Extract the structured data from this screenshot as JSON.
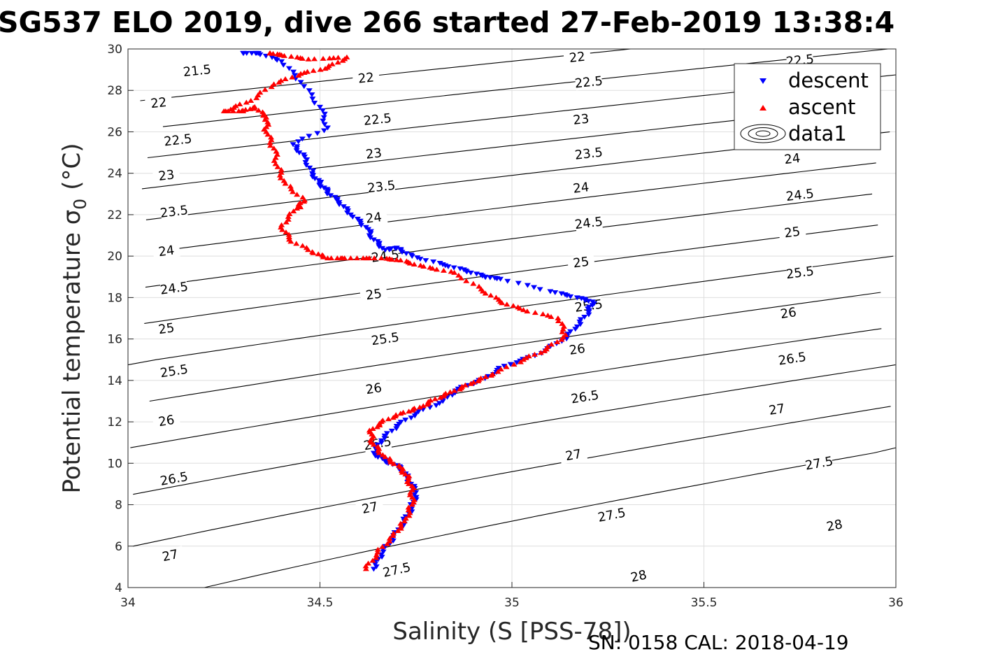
{
  "chart_data": {
    "type": "scatter",
    "title": "SG537 ELO 2019, dive 266 started 27-Feb-2019 13:38:4",
    "xlabel": "Salinity (S [PSS-78])",
    "ylabel_text": "Potential temperature σ",
    "ylabel_sub": "0",
    "ylabel_unit": "(°C)",
    "xlim": [
      34,
      36
    ],
    "ylim": [
      4,
      30
    ],
    "xticks": [
      34,
      34.5,
      35,
      35.5,
      36
    ],
    "xtick_labels": [
      "34",
      "34.5",
      "35",
      "35.5",
      "36"
    ],
    "yticks": [
      4,
      6,
      8,
      10,
      12,
      14,
      16,
      18,
      20,
      22,
      24,
      26,
      28,
      30
    ],
    "ytick_labels": [
      "4",
      "6",
      "8",
      "10",
      "12",
      "14",
      "16",
      "18",
      "20",
      "22",
      "24",
      "26",
      "28",
      "30"
    ],
    "grid": true,
    "legend_position": "top-right",
    "legend": [
      "descent",
      "ascent",
      "data1"
    ],
    "footer": "SN: 0158  CAL: 2018-04-19",
    "colors": {
      "descent": "#0000ff",
      "ascent": "#ff0000",
      "contour": "#000000",
      "grid": "#dedede"
    },
    "contours": {
      "levels": [
        21.5,
        22,
        22.5,
        23,
        23.5,
        24,
        24.5,
        25,
        25.5,
        26,
        26.5,
        27,
        27.5,
        28
      ],
      "level_labels": [
        "21.5",
        "22",
        "22.5",
        "23",
        "23.5",
        "24",
        "24.5",
        "25",
        "25.5",
        "26",
        "26.5",
        "27",
        "27.5",
        "28"
      ],
      "labels": [
        {
          "level": "21.5",
          "s": 34.18,
          "t": 28.95
        },
        {
          "level": "22",
          "s": 34.08,
          "t": 27.4
        },
        {
          "level": "22",
          "s": 34.62,
          "t": 28.6
        },
        {
          "level": "22",
          "s": 35.17,
          "t": 29.6
        },
        {
          "level": "22.5",
          "s": 34.13,
          "t": 25.6
        },
        {
          "level": "22.5",
          "s": 34.65,
          "t": 26.6
        },
        {
          "level": "22.5",
          "s": 35.2,
          "t": 28.4
        },
        {
          "level": "22.5",
          "s": 35.75,
          "t": 29.45
        },
        {
          "level": "23",
          "s": 34.1,
          "t": 23.9
        },
        {
          "level": "23",
          "s": 34.64,
          "t": 24.95
        },
        {
          "level": "23",
          "s": 35.18,
          "t": 26.6
        },
        {
          "level": "23.5",
          "s": 34.12,
          "t": 22.15
        },
        {
          "level": "23.5",
          "s": 34.66,
          "t": 23.35
        },
        {
          "level": "23.5",
          "s": 35.2,
          "t": 24.95
        },
        {
          "level": "24",
          "s": 34.1,
          "t": 20.25
        },
        {
          "level": "24",
          "s": 34.64,
          "t": 21.85
        },
        {
          "level": "24",
          "s": 35.18,
          "t": 23.3
        },
        {
          "level": "24",
          "s": 35.73,
          "t": 24.7
        },
        {
          "level": "24.5",
          "s": 34.12,
          "t": 18.45
        },
        {
          "level": "24.5",
          "s": 34.67,
          "t": 20.0
        },
        {
          "level": "24.5",
          "s": 35.2,
          "t": 21.6
        },
        {
          "level": "24.5",
          "s": 35.75,
          "t": 22.95
        },
        {
          "level": "25",
          "s": 34.1,
          "t": 16.5
        },
        {
          "level": "25",
          "s": 34.64,
          "t": 18.15
        },
        {
          "level": "25",
          "s": 35.18,
          "t": 19.7
        },
        {
          "level": "25",
          "s": 35.73,
          "t": 21.15
        },
        {
          "level": "25.5",
          "s": 34.12,
          "t": 14.45
        },
        {
          "level": "25.5",
          "s": 34.67,
          "t": 16.0
        },
        {
          "level": "25.5",
          "s": 35.2,
          "t": 17.6
        },
        {
          "level": "25.5",
          "s": 35.75,
          "t": 19.2
        },
        {
          "level": "26",
          "s": 34.1,
          "t": 12.05
        },
        {
          "level": "26",
          "s": 34.64,
          "t": 13.6
        },
        {
          "level": "26",
          "s": 35.17,
          "t": 15.5
        },
        {
          "level": "26",
          "s": 35.72,
          "t": 17.25
        },
        {
          "level": "26.5",
          "s": 34.12,
          "t": 9.25
        },
        {
          "level": "26.5",
          "s": 34.65,
          "t": 10.95
        },
        {
          "level": "26.5",
          "s": 35.19,
          "t": 13.2
        },
        {
          "level": "26.5",
          "s": 35.73,
          "t": 15.05
        },
        {
          "level": "27",
          "s": 34.11,
          "t": 5.55
        },
        {
          "level": "27",
          "s": 34.63,
          "t": 7.85
        },
        {
          "level": "27",
          "s": 35.16,
          "t": 10.4
        },
        {
          "level": "27",
          "s": 35.69,
          "t": 12.6
        },
        {
          "level": "27.5",
          "s": 34.7,
          "t": 4.85
        },
        {
          "level": "27.5",
          "s": 35.26,
          "t": 7.5
        },
        {
          "level": "27.5",
          "s": 35.8,
          "t": 10.0
        },
        {
          "level": "28",
          "s": 35.33,
          "t": 4.55
        },
        {
          "level": "28",
          "s": 35.84,
          "t": 7.0
        }
      ]
    },
    "descent": {
      "s": [
        34.3,
        34.34,
        34.4,
        34.45,
        34.5,
        34.52,
        34.43,
        34.46,
        34.48,
        34.5,
        34.52,
        34.55,
        34.58,
        34.62,
        34.64,
        34.67,
        34.7,
        34.74,
        34.82,
        34.88,
        34.93,
        34.97,
        35.1,
        35.17,
        35.21,
        35.2,
        35.17,
        35.13,
        35.06,
        34.98,
        34.93,
        34.86,
        34.82,
        34.75,
        34.7,
        34.66,
        34.64,
        34.67,
        34.71,
        34.73,
        34.75,
        34.74,
        34.72,
        34.69,
        34.66,
        34.64
      ],
      "t": [
        29.8,
        29.8,
        29.4,
        28.4,
        27.2,
        26.2,
        25.4,
        24.8,
        24.0,
        23.5,
        23.1,
        22.6,
        22.0,
        21.4,
        20.8,
        20.3,
        20.4,
        20.0,
        19.6,
        19.3,
        19.0,
        18.9,
        18.3,
        18.0,
        17.8,
        17.3,
        16.6,
        15.9,
        15.2,
        14.7,
        14.1,
        13.6,
        13.0,
        12.4,
        11.8,
        11.1,
        10.5,
        10.1,
        9.8,
        9.2,
        8.6,
        7.9,
        7.2,
        6.4,
        5.6,
        4.9
      ]
    },
    "ascent": {
      "s": [
        34.62,
        34.65,
        34.69,
        34.72,
        34.74,
        34.74,
        34.73,
        34.71,
        34.67,
        34.64,
        34.63,
        34.66,
        34.71,
        34.76,
        34.8,
        34.85,
        34.9,
        34.95,
        35.03,
        35.09,
        35.14,
        35.12,
        35.03,
        34.97,
        34.92,
        34.85,
        34.77,
        34.71,
        34.66,
        34.58,
        34.52,
        34.48,
        34.42,
        34.4,
        34.44,
        34.46,
        34.41,
        34.39,
        34.38,
        34.36,
        34.36,
        34.33,
        34.3,
        34.25,
        34.32,
        34.38,
        34.45,
        34.52,
        34.57,
        34.47,
        34.4,
        34.37
      ],
      "t": [
        4.9,
        5.7,
        6.5,
        7.2,
        8.0,
        8.7,
        9.3,
        9.8,
        10.3,
        10.9,
        11.5,
        12.0,
        12.4,
        12.7,
        13.1,
        13.5,
        13.9,
        14.3,
        15.0,
        15.5,
        16.2,
        17.0,
        17.4,
        17.8,
        18.4,
        19.2,
        19.5,
        19.8,
        19.9,
        19.9,
        19.9,
        20.2,
        20.8,
        21.5,
        22.3,
        22.7,
        23.5,
        24.3,
        25.2,
        26.0,
        26.7,
        27.2,
        27.0,
        27.0,
        27.5,
        28.3,
        28.8,
        29.1,
        29.6,
        29.5,
        29.7,
        29.8
      ]
    }
  }
}
